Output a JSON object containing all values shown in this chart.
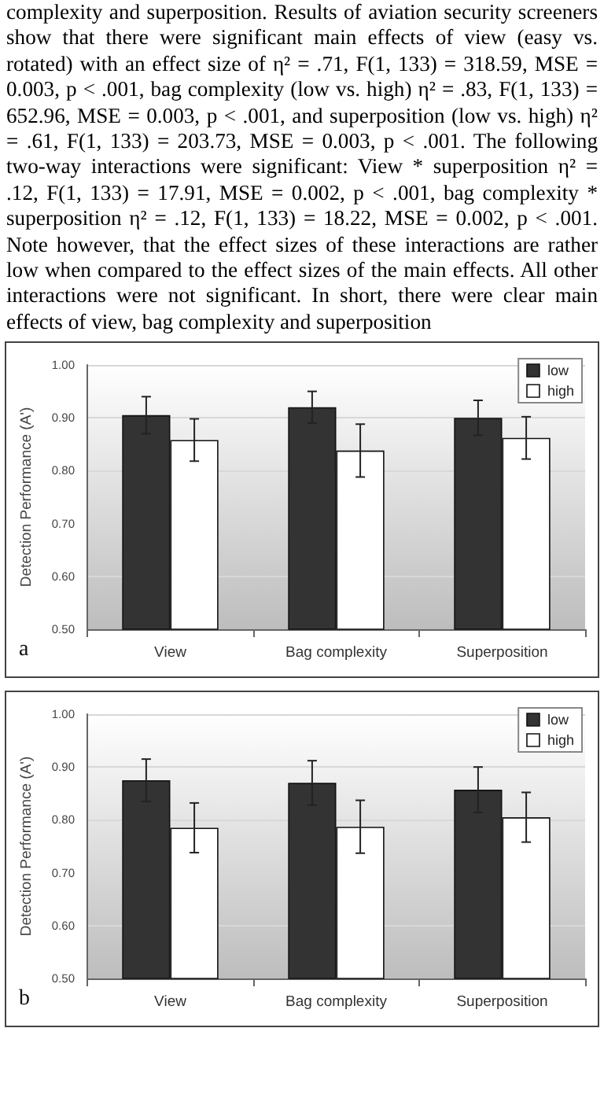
{
  "chart_data": [
    {
      "type": "bar",
      "ylabel": "Detection Performance (A')",
      "categories": [
        "View",
        "Bag complexity",
        "Superposition"
      ],
      "series": [
        {
          "name": "low",
          "color": "#333333",
          "values": [
            0.905,
            0.92,
            0.9
          ],
          "errors": [
            0.035,
            0.03,
            0.033
          ]
        },
        {
          "name": "high",
          "color": "#ffffff",
          "values": [
            0.858,
            0.838,
            0.862
          ],
          "errors": [
            0.04,
            0.05,
            0.04
          ]
        }
      ],
      "ylim": [
        0.5,
        1.0
      ],
      "yticks": [
        {
          "value": 0.5,
          "label": "0.50"
        },
        {
          "value": 0.6,
          "label": "0.60"
        },
        {
          "value": 0.7,
          "label": "0.70"
        },
        {
          "value": 0.8,
          "label": "0.80"
        },
        {
          "value": 0.9,
          "label": "0.90"
        },
        {
          "value": 1.0,
          "label": "1.00"
        }
      ],
      "grid": "y",
      "legend": "top right",
      "annotations": [
        "complexity and superposition. Results of aviation security screeners show that there were significant main effects of view (easy vs. rotated) with an effect size of η² = .71, F(1, 133) = 318.59, MSE = 0.003, p < .001, bag complexity (low vs. high) η² = .83, F(1, 133) = 652.96, MSE = 0.003, p < .001, and superposition (low vs. high) η² = .61, F(1, 133) = 203.73, MSE = 0.003, p < .001. The following two-way interactions were significant: View * superposition η² = .12, F(1, 133) = 17.91, MSE = 0.002, p < .001, bag complexity * superposition η² = .12, F(1, 133) = 18.22, MSE = 0.002, p < .001. Note however, that the effect sizes of these interactions are rather low when compared to the effect sizes of the main effects. All other interactions were not significant. In short, there were clear main effects of view, bag complexity and superposition",
        "a"
      ]
    },
    {
      "type": "bar",
      "ylabel": "Detection Performance (A')",
      "categories": [
        "View",
        "Bag complexity",
        "Superposition"
      ],
      "series": [
        {
          "name": "low",
          "color": "#333333",
          "values": [
            0.875,
            0.87,
            0.857
          ],
          "errors": [
            0.04,
            0.042,
            0.043
          ]
        },
        {
          "name": "high",
          "color": "#ffffff",
          "values": [
            0.785,
            0.787,
            0.805
          ],
          "errors": [
            0.047,
            0.05,
            0.047
          ]
        }
      ],
      "ylim": [
        0.5,
        1.0
      ],
      "yticks": [
        {
          "value": 0.5,
          "label": "0.50"
        },
        {
          "value": 0.6,
          "label": "0.60"
        },
        {
          "value": 0.7,
          "label": "0.70"
        },
        {
          "value": 0.8,
          "label": "0.80"
        },
        {
          "value": 0.9,
          "label": "0.90"
        },
        {
          "value": 1.0,
          "label": "1.00"
        }
      ],
      "grid": "y",
      "legend": "top right",
      "annotations": [
        "b"
      ]
    }
  ]
}
